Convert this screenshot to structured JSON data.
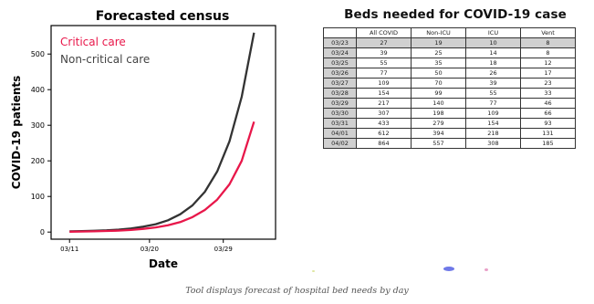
{
  "chart_data": [
    {
      "type": "line",
      "title": "Forecasted census",
      "xlabel": "Date",
      "ylabel": "COVID-19 patients",
      "x": [
        0,
        2,
        4,
        6,
        8,
        10,
        12,
        14,
        16,
        18,
        20,
        22,
        24,
        26,
        28,
        30
      ],
      "x_tick_positions": [
        0,
        13,
        25
      ],
      "x_tick_labels": [
        "03/11",
        "03/20",
        "03/29"
      ],
      "y_ticks": [
        0,
        100,
        200,
        300,
        400,
        500
      ],
      "ylim": [
        -20,
        580
      ],
      "xlim": [
        -3,
        33.5
      ],
      "series": [
        {
          "name": "Critical care",
          "color": "#e8174a",
          "values": [
            1,
            1.5,
            2,
            3,
            4,
            6,
            9,
            13,
            19,
            28,
            42,
            62,
            91,
            134,
            200,
            310
          ]
        },
        {
          "name": "Non-critical care",
          "color": "#333333",
          "values": [
            2,
            2.5,
            3.5,
            5,
            7,
            10,
            15,
            22,
            33,
            50,
            75,
            113,
            170,
            255,
            380,
            560
          ]
        }
      ],
      "legend_position": "top-left",
      "grid": false
    },
    {
      "type": "table",
      "title": "Beds needed for COVID-19 case",
      "columns": [
        "",
        "All COVID",
        "Non-ICU",
        "ICU",
        "Vent"
      ],
      "highlight_row": 0,
      "rows": [
        [
          "03/23",
          "27",
          "19",
          "10",
          "8"
        ],
        [
          "03/24",
          "39",
          "25",
          "14",
          "8"
        ],
        [
          "03/25",
          "55",
          "35",
          "18",
          "12"
        ],
        [
          "03/26",
          "77",
          "50",
          "26",
          "17"
        ],
        [
          "03/27",
          "109",
          "70",
          "39",
          "23"
        ],
        [
          "03/28",
          "154",
          "99",
          "55",
          "33"
        ],
        [
          "03/29",
          "217",
          "140",
          "77",
          "46"
        ],
        [
          "03/30",
          "307",
          "198",
          "109",
          "66"
        ],
        [
          "03/31",
          "433",
          "279",
          "154",
          "93"
        ],
        [
          "04/01",
          "612",
          "394",
          "218",
          "131"
        ],
        [
          "04/02",
          "864",
          "557",
          "308",
          "185"
        ]
      ]
    }
  ],
  "caption": "Tool displays forecast of hospital bed needs by day"
}
